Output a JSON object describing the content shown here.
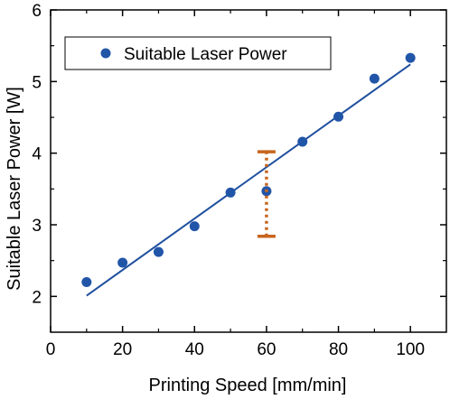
{
  "chart_data": {
    "type": "scatter",
    "xlabel": "Printing Speed  [mm/min]",
    "ylabel": "Suitable Laser Power  [W]",
    "xlim": [
      0,
      110
    ],
    "ylim": [
      1.5,
      6
    ],
    "xticks": [
      "0",
      "20",
      "40",
      "60",
      "80",
      "100"
    ],
    "yticks": [
      "2",
      "3",
      "4",
      "5",
      "6"
    ],
    "legend_position": "top-left",
    "grid": false,
    "series": [
      {
        "name": "Suitable Laser Power",
        "color": "#2155a8",
        "marker": "circle",
        "x": [
          10,
          20,
          30,
          40,
          50,
          60,
          70,
          80,
          90,
          100
        ],
        "y": [
          2.2,
          2.47,
          2.62,
          2.98,
          3.45,
          3.47,
          4.16,
          4.51,
          5.04,
          5.33
        ]
      }
    ],
    "fit_line": {
      "color": "#1f4f9f",
      "x": [
        10,
        100
      ],
      "y": [
        2.01,
        5.24
      ]
    },
    "error_bar": {
      "color": "#c8651e",
      "style": "dotted",
      "x": 60,
      "y_low": 2.84,
      "y_high": 4.02
    }
  }
}
